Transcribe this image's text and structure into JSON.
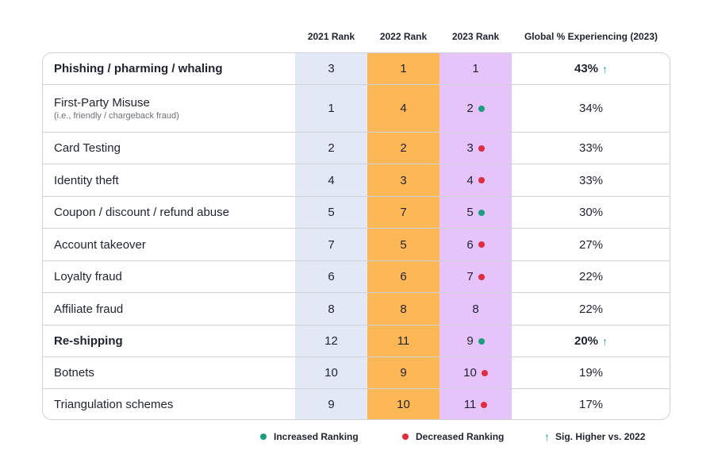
{
  "colors": {
    "col_2021": "#e2e8f6",
    "col_2022": "#fdb754",
    "col_2023": "#e6c3fb",
    "increased": "#1a9e7e",
    "decreased": "#e02d3c",
    "sig_higher": "#1a9e7e"
  },
  "legend": {
    "increased": "Increased Ranking",
    "decreased": "Decreased Ranking",
    "sig_higher": "Sig. Higher vs. 2022",
    "arrow_icon": "↑"
  },
  "chart_data": {
    "type": "table",
    "columns": [
      "2021 Rank",
      "2022 Rank",
      "2023 Rank",
      "Global % Experiencing (2023)"
    ],
    "rows": [
      {
        "label": "Phishing / pharming / whaling",
        "sub": "",
        "bold": true,
        "r2021": "3",
        "r2022": "1",
        "r2023": "1",
        "change": "none",
        "pct": "43%",
        "sig_higher": true
      },
      {
        "label": "First-Party Misuse",
        "sub": "(i.e., friendly / chargeback fraud)",
        "bold": false,
        "r2021": "1",
        "r2022": "4",
        "r2023": "2",
        "change": "increased",
        "pct": "34%",
        "sig_higher": false
      },
      {
        "label": "Card Testing",
        "sub": "",
        "bold": false,
        "r2021": "2",
        "r2022": "2",
        "r2023": "3",
        "change": "decreased",
        "pct": "33%",
        "sig_higher": false
      },
      {
        "label": "Identity theft",
        "sub": "",
        "bold": false,
        "r2021": "4",
        "r2022": "3",
        "r2023": "4",
        "change": "decreased",
        "pct": "33%",
        "sig_higher": false
      },
      {
        "label": "Coupon / discount / refund abuse",
        "sub": "",
        "bold": false,
        "r2021": "5",
        "r2022": "7",
        "r2023": "5",
        "change": "increased",
        "pct": "30%",
        "sig_higher": false
      },
      {
        "label": "Account takeover",
        "sub": "",
        "bold": false,
        "r2021": "7",
        "r2022": "5",
        "r2023": "6",
        "change": "decreased",
        "pct": "27%",
        "sig_higher": false
      },
      {
        "label": "Loyalty fraud",
        "sub": "",
        "bold": false,
        "r2021": "6",
        "r2022": "6",
        "r2023": "7",
        "change": "decreased",
        "pct": "22%",
        "sig_higher": false
      },
      {
        "label": "Affiliate fraud",
        "sub": "",
        "bold": false,
        "r2021": "8",
        "r2022": "8",
        "r2023": "8",
        "change": "none",
        "pct": "22%",
        "sig_higher": false
      },
      {
        "label": "Re-shipping",
        "sub": "",
        "bold": true,
        "r2021": "12",
        "r2022": "11",
        "r2023": "9",
        "change": "increased",
        "pct": "20%",
        "sig_higher": true
      },
      {
        "label": "Botnets",
        "sub": "",
        "bold": false,
        "r2021": "10",
        "r2022": "9",
        "r2023": "10",
        "change": "decreased",
        "pct": "19%",
        "sig_higher": false
      },
      {
        "label": "Triangulation schemes",
        "sub": "",
        "bold": false,
        "r2021": "9",
        "r2022": "10",
        "r2023": "11",
        "change": "decreased",
        "pct": "17%",
        "sig_higher": false
      }
    ]
  }
}
